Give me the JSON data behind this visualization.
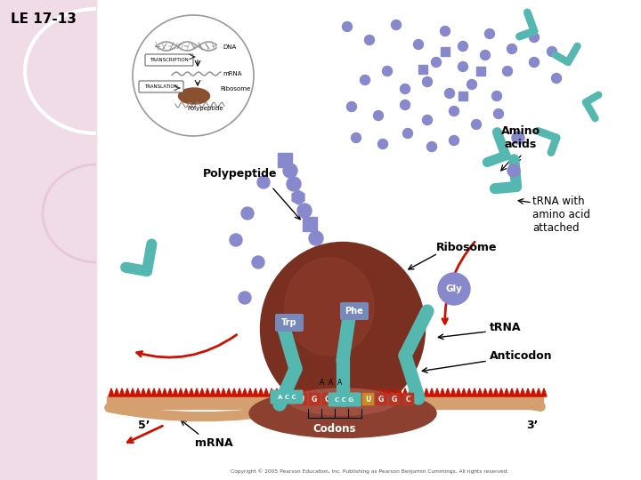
{
  "title": "LE 17-13",
  "left_panel_color": "#f0dce6",
  "white_bg": "#ffffff",
  "aa_color": "#8888cc",
  "trna_color": "#55b8b0",
  "ribosome_upper": "#7a3020",
  "ribosome_lower": "#8b4030",
  "mrna_band": "#d4a070",
  "codon_red": "#cc1100",
  "label_box_color": "#7788bb",
  "gly_circle_color": "#8888cc",
  "labels": {
    "title": "LE 17-13",
    "polypeptide": "Polypeptide",
    "amino_acids": "Amino\nacids",
    "trna_with": "tRNA with\namino acid\nattached",
    "ribosome": "Ribosome",
    "trna": "tRNA",
    "anticodon": "Anticodon",
    "codons": "Codons",
    "mrna": "mRNA",
    "five_prime": "5’",
    "three_prime": "3’",
    "copyright": "Copyright © 2005 Pearson Education, Inc. Publishing as Pearson Benjamin Cummings. All rights reserved."
  }
}
